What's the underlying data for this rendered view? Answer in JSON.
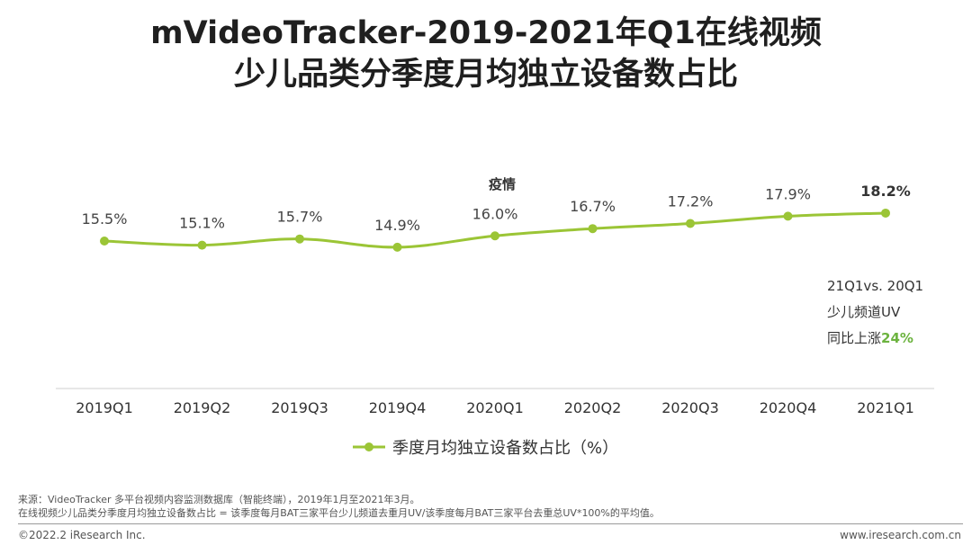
{
  "title": {
    "line1": "mVideoTracker-2019-2021年Q1在线视频",
    "line2": "少儿品类分季度月均独立设备数占比"
  },
  "chart_data": {
    "type": "line",
    "categories": [
      "2019Q1",
      "2019Q2",
      "2019Q3",
      "2019Q4",
      "2020Q1",
      "2020Q2",
      "2020Q3",
      "2020Q4",
      "2021Q1"
    ],
    "series": [
      {
        "name": "季度月均独立设备数占比（%）",
        "values": [
          15.5,
          15.1,
          15.7,
          14.9,
          16.0,
          16.7,
          17.2,
          17.9,
          18.2
        ],
        "labels": [
          "15.5%",
          "15.1%",
          "15.7%",
          "14.9%",
          "16.0%",
          "16.7%",
          "17.2%",
          "17.9%",
          "18.2%"
        ],
        "color": "#9bc536"
      }
    ],
    "annotation": {
      "text": "疫情",
      "category": "2020Q1"
    },
    "legend_position": "bottom",
    "grid": false
  },
  "callout": {
    "line1": "21Q1vs. 20Q1",
    "line2": "少儿频道UV",
    "line3_prefix": "同比上涨",
    "line3_highlight": "24%"
  },
  "source": {
    "line1": "来源：VideoTracker 多平台视频内容监测数据库（智能终端），2019年1月至2021年3月。",
    "line2": "在线视频少儿品类分季度月均独立设备数占比 = 该季度每月BAT三家平台少儿频道去重月UV/该季度每月BAT三家平台去重总UV*100%的平均值。"
  },
  "footer": {
    "copyright": "©2022.2 iResearch Inc.",
    "website": "www.iresearch.com.cn"
  },
  "colors": {
    "line": "#9bc536",
    "highlight": "#6cb33f"
  }
}
